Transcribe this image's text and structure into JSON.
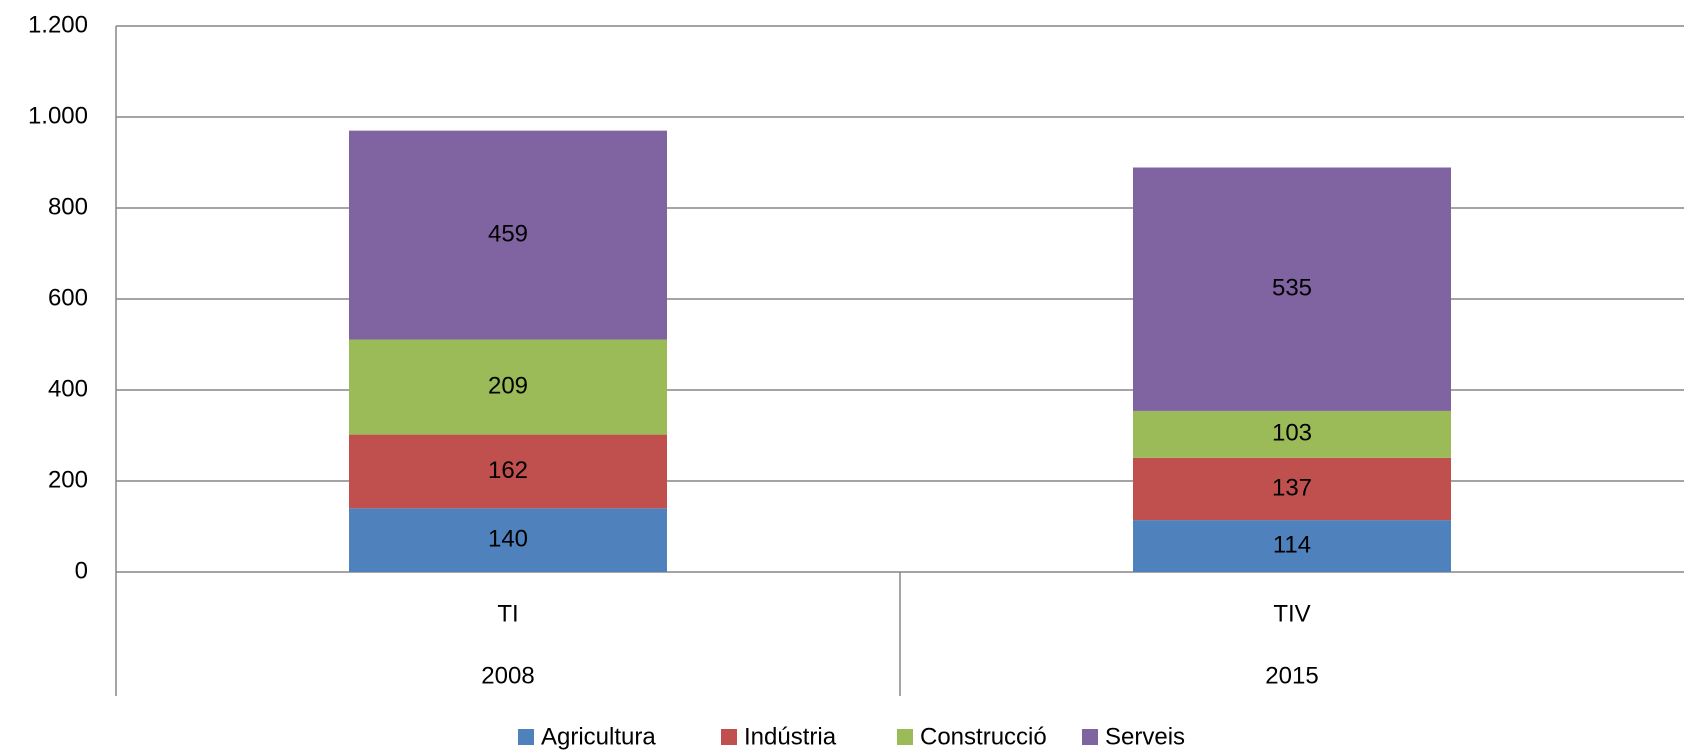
{
  "chart_data": {
    "type": "stacked_bar",
    "categories": [
      "TI",
      "TIV"
    ],
    "category_groups": [
      "2008",
      "2015"
    ],
    "series": [
      {
        "name": "Agricultura",
        "color": "#4f81bd",
        "values": [
          140,
          114
        ]
      },
      {
        "name": "Indústria",
        "color": "#c0504d",
        "values": [
          162,
          137
        ]
      },
      {
        "name": "Construcció",
        "color": "#9bbb59",
        "values": [
          209,
          103
        ]
      },
      {
        "name": "Serveis",
        "color": "#8064a2",
        "values": [
          459,
          535
        ]
      }
    ],
    "ylim": [
      0,
      1200
    ],
    "yticks": [
      0,
      200,
      400,
      600,
      800,
      {
        "value": 1000,
        "label": "1.000"
      },
      {
        "value": 1200,
        "label": "1.200"
      }
    ],
    "grid": true,
    "legend": "bottom"
  }
}
